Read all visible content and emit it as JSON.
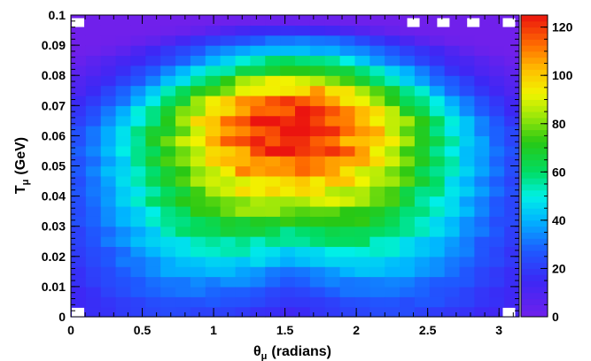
{
  "chart_data": {
    "type": "heatmap",
    "xlabel_main": "θ",
    "xlabel_sub": "μ",
    "xlabel_unit": "(radians)",
    "ylabel_main": "T",
    "ylabel_sub": "μ",
    "ylabel_unit": "(GeV)",
    "xlim": [
      0,
      3.14159
    ],
    "ylim": [
      0,
      0.1
    ],
    "x_ticks": [
      0,
      0.5,
      1,
      1.5,
      2,
      2.5,
      3
    ],
    "x_tick_labels": [
      "0",
      "0.5",
      "1",
      "1.5",
      "2",
      "2.5",
      "3"
    ],
    "y_ticks": [
      0,
      0.01,
      0.02,
      0.03,
      0.04,
      0.05,
      0.06,
      0.07,
      0.08,
      0.09,
      0.1
    ],
    "y_tick_labels": [
      "0",
      "0.01",
      "0.02",
      "0.03",
      "0.04",
      "0.05",
      "0.06",
      "0.07",
      "0.08",
      "0.09",
      "0.1"
    ],
    "z_range": [
      0,
      125
    ],
    "z_ticks": [
      0,
      20,
      40,
      60,
      80,
      100,
      120
    ],
    "z_tick_labels": [
      "0",
      "20",
      "40",
      "60",
      "80",
      "100",
      "120"
    ],
    "n_x_bins": 30,
    "n_y_bins": 30,
    "peak": {
      "x": 1.55,
      "y": 0.068,
      "z": 125
    },
    "grid": false,
    "colormap": "rainbow"
  }
}
